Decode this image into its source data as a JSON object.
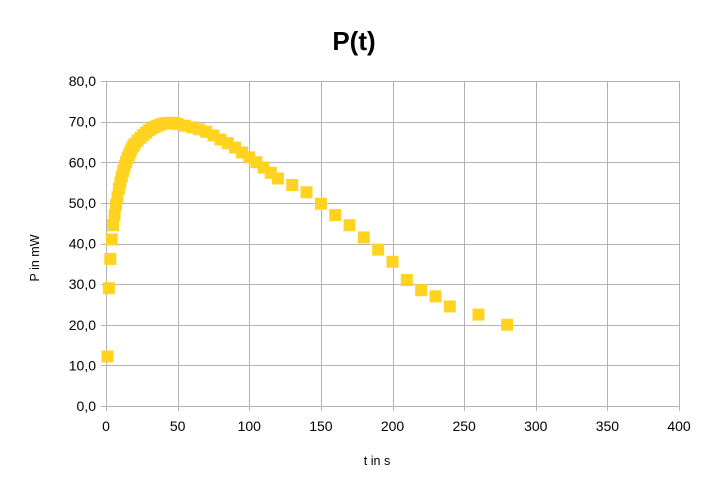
{
  "chart_data": {
    "type": "scatter",
    "title": "P(t)",
    "xlabel": "t in s",
    "ylabel": "P in mW",
    "xlim": [
      0,
      400
    ],
    "ylim": [
      0,
      80
    ],
    "xticks": [
      0,
      50,
      100,
      150,
      200,
      250,
      300,
      350,
      400
    ],
    "yticks": [
      "0,0",
      "10,0",
      "20,0",
      "30,0",
      "40,0",
      "50,0",
      "60,0",
      "70,0",
      "80,0"
    ],
    "yticks_values": [
      0,
      10,
      20,
      30,
      40,
      50,
      60,
      70,
      80
    ],
    "grid": true,
    "legend": "none",
    "marker": "square",
    "color": "#FFD320",
    "series": [
      {
        "x": [
          1,
          2,
          3,
          4,
          5,
          6,
          7,
          8,
          9,
          10,
          11,
          12,
          13,
          14,
          15,
          16,
          17,
          18,
          19,
          20,
          22,
          24,
          26,
          28,
          30,
          32,
          34,
          36,
          38,
          40,
          42,
          44,
          46,
          48,
          50,
          55,
          60,
          65,
          70,
          75,
          80,
          85,
          90,
          95,
          100,
          105,
          110,
          115,
          120,
          130,
          140,
          150,
          160,
          170,
          180,
          190,
          200,
          210,
          220,
          230,
          240,
          260,
          280
        ],
        "y": [
          12.2,
          29.0,
          36.2,
          41.0,
          44.5,
          47.0,
          49.5,
          51.5,
          53.5,
          55.0,
          56.5,
          57.8,
          59.0,
          60.0,
          61.0,
          61.8,
          62.6,
          63.3,
          64.0,
          64.5,
          65.3,
          66.0,
          66.7,
          67.3,
          67.9,
          68.3,
          68.7,
          69.0,
          69.3,
          69.5,
          69.6,
          69.7,
          69.7,
          69.6,
          69.4,
          69.0,
          68.6,
          68.1,
          67.5,
          66.6,
          65.6,
          64.7,
          63.6,
          62.4,
          61.2,
          60.0,
          58.7,
          57.4,
          56.0,
          54.4,
          52.6,
          49.8,
          47.0,
          44.5,
          41.5,
          38.5,
          35.5,
          31.0,
          28.5,
          27.0,
          24.5,
          22.5,
          20.0
        ]
      }
    ]
  }
}
